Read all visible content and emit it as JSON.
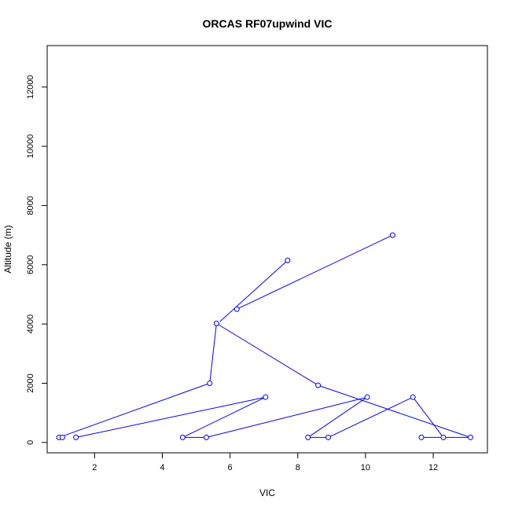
{
  "chart_data": {
    "type": "line",
    "title": "ORCAS RF07upwind VIC",
    "xlabel": "VIC",
    "ylabel": "Altitude (m)",
    "xlim": [
      0.6,
      13.6
    ],
    "ylim": [
      -350,
      13400
    ],
    "x_ticks": [
      2,
      4,
      6,
      8,
      10,
      12
    ],
    "y_ticks": [
      0,
      2000,
      4000,
      6000,
      8000,
      10000,
      12000
    ],
    "x_tick_labels": [
      "2",
      "4",
      "6",
      "8",
      "10",
      "12"
    ],
    "y_tick_labels": [
      "0",
      "2000",
      "4000",
      "6000",
      "8000",
      "10000",
      "12000"
    ],
    "grid": false,
    "legend": "none",
    "series_color": "#0000ff",
    "marker": "open-circle",
    "points": [
      {
        "x": 7.7,
        "y": 6150
      },
      {
        "x": 6.2,
        "y": 4500
      },
      {
        "x": 10.8,
        "y": 7000
      },
      {
        "x": 5.6,
        "y": 4020
      },
      {
        "x": 5.4,
        "y": 2000
      },
      {
        "x": 0.95,
        "y": 170
      },
      {
        "x": 1.05,
        "y": 170
      },
      {
        "x": 1.45,
        "y": 170
      },
      {
        "x": 7.05,
        "y": 1530
      },
      {
        "x": 4.6,
        "y": 170
      },
      {
        "x": 5.3,
        "y": 170
      },
      {
        "x": 10.05,
        "y": 1530
      },
      {
        "x": 8.3,
        "y": 170
      },
      {
        "x": 8.9,
        "y": 170
      },
      {
        "x": 11.4,
        "y": 1530
      },
      {
        "x": 12.3,
        "y": 170
      },
      {
        "x": 11.65,
        "y": 170
      },
      {
        "x": 13.1,
        "y": 170
      },
      {
        "x": 8.6,
        "y": 1930
      }
    ],
    "segments": [
      [
        [
          7.7,
          6150
        ],
        [
          5.7,
          4080
        ]
      ],
      [
        [
          6.2,
          4500
        ],
        [
          10.8,
          7000
        ]
      ],
      [
        [
          5.6,
          4020
        ],
        [
          5.4,
          2000
        ]
      ],
      [
        [
          5.4,
          2000
        ],
        [
          0.95,
          170
        ]
      ],
      [
        [
          1.45,
          170
        ],
        [
          7.05,
          1530
        ]
      ],
      [
        [
          7.05,
          1530
        ],
        [
          4.6,
          170
        ]
      ],
      [
        [
          4.6,
          170
        ],
        [
          5.3,
          170
        ]
      ],
      [
        [
          5.3,
          170
        ],
        [
          10.05,
          1530
        ]
      ],
      [
        [
          10.05,
          1530
        ],
        [
          8.3,
          170
        ]
      ],
      [
        [
          8.3,
          170
        ],
        [
          8.9,
          170
        ]
      ],
      [
        [
          8.9,
          170
        ],
        [
          11.4,
          1530
        ]
      ],
      [
        [
          11.4,
          1530
        ],
        [
          12.3,
          170
        ]
      ],
      [
        [
          11.65,
          170
        ],
        [
          12.3,
          170
        ]
      ],
      [
        [
          12.3,
          170
        ],
        [
          13.1,
          170
        ]
      ],
      [
        [
          13.1,
          170
        ],
        [
          8.6,
          1930
        ]
      ],
      [
        [
          8.6,
          1930
        ],
        [
          5.6,
          4020
        ]
      ]
    ]
  }
}
